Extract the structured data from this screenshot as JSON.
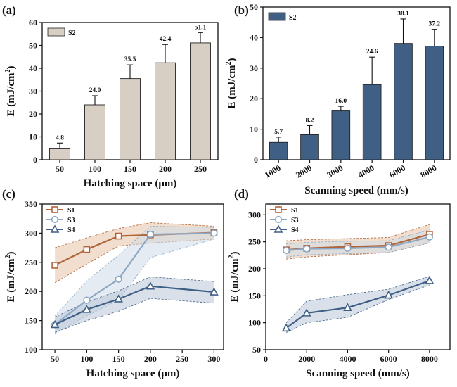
{
  "chart_data": [
    {
      "type": "bar",
      "panel_label": "(a)",
      "xlabel": "Hatching space (μm)",
      "ylabel": "E (mJ/cm²)",
      "categories": [
        "50",
        "100",
        "150",
        "200",
        "250"
      ],
      "series": [
        {
          "name": "S2",
          "values": [
            4.8,
            24.0,
            35.5,
            42.4,
            51.1
          ],
          "errors": [
            2.5,
            4.0,
            6.0,
            8.0,
            4.5
          ]
        }
      ],
      "data_labels": [
        "4.8",
        "24.0",
        "35.5",
        "42.4",
        "51.1"
      ],
      "ylim": [
        0,
        60
      ],
      "yticks": [
        "0",
        "10",
        "20",
        "30",
        "40",
        "50",
        "60"
      ],
      "bar_color": "#d8cfc4",
      "legend": "top-left"
    },
    {
      "type": "bar",
      "panel_label": "(b)",
      "xlabel": "Scanning speed (mm/s)",
      "ylabel": "E (mJ/cm²)",
      "categories": [
        "1000",
        "2000",
        "3000",
        "4000",
        "6000",
        "8000"
      ],
      "series": [
        {
          "name": "S2",
          "values": [
            5.7,
            8.2,
            16.0,
            24.6,
            38.1,
            37.2
          ],
          "errors": [
            1.7,
            3.0,
            1.5,
            9.0,
            8.0,
            5.5
          ]
        }
      ],
      "data_labels": [
        "5.7",
        "8.2",
        "16.0",
        "24.6",
        "38.1",
        "37.2"
      ],
      "ylim": [
        0,
        50
      ],
      "yticks": [
        "0",
        "10",
        "20",
        "30",
        "40",
        "50"
      ],
      "bar_color": "#3f5f85",
      "legend": "top-left"
    },
    {
      "type": "line",
      "panel_label": "(c)",
      "xlabel": "Hatching space (μm)",
      "ylabel": "E (mJ/cm²)",
      "xlim": [
        30,
        315
      ],
      "ylim": [
        100,
        350
      ],
      "xticks": [
        "50",
        "100",
        "150",
        "200",
        "250",
        "300"
      ],
      "yticks": [
        "100",
        "150",
        "200",
        "250",
        "300",
        "350"
      ],
      "series": [
        {
          "name": "S1",
          "x": [
            50,
            100,
            150,
            200,
            300
          ],
          "y": [
            245,
            272,
            295,
            297,
            301
          ],
          "band_upper": [
            275,
            292,
            308,
            318,
            312
          ],
          "band_lower": [
            215,
            247,
            278,
            283,
            290
          ],
          "color": "#b0643a",
          "marker": "square"
        },
        {
          "name": "S3",
          "x": [
            50,
            100,
            150,
            200,
            300
          ],
          "y": [
            143,
            185,
            221,
            298,
            300
          ],
          "band_upper": [
            158,
            218,
            262,
            312,
            310
          ],
          "band_lower": [
            128,
            158,
            185,
            258,
            290
          ],
          "color": "#8ea8c3",
          "marker": "circle"
        },
        {
          "name": "S4",
          "x": [
            50,
            100,
            150,
            200,
            300
          ],
          "y": [
            143,
            169,
            187,
            209,
            199
          ],
          "band_upper": [
            156,
            182,
            201,
            225,
            217
          ],
          "band_lower": [
            130,
            150,
            166,
            188,
            180
          ],
          "color": "#3f5f85",
          "marker": "triangle"
        }
      ],
      "legend": "top-left"
    },
    {
      "type": "line",
      "panel_label": "(d)",
      "xlabel": "Scanning speed (mm/s)",
      "ylabel": "E (mJ/cm²)",
      "xlim": [
        0,
        9000
      ],
      "ylim": [
        50,
        320
      ],
      "xticks": [
        "0",
        "2000",
        "4000",
        "6000",
        "8000"
      ],
      "yticks": [
        "50",
        "100",
        "150",
        "200",
        "250",
        "300"
      ],
      "series": [
        {
          "name": "S1",
          "x": [
            1000,
            2000,
            4000,
            6000,
            8000
          ],
          "y": [
            235,
            238,
            241,
            243,
            264
          ],
          "band_upper": [
            252,
            254,
            256,
            258,
            282
          ],
          "band_lower": [
            218,
            222,
            226,
            230,
            248
          ],
          "color": "#b0643a",
          "marker": "square"
        },
        {
          "name": "S3",
          "x": [
            1000,
            2000,
            4000,
            6000,
            8000
          ],
          "y": [
            234,
            237,
            238,
            240,
            259
          ],
          "band_upper": [
            246,
            249,
            251,
            252,
            272
          ],
          "band_lower": [
            222,
            226,
            228,
            230,
            248
          ],
          "color": "#8ea8c3",
          "marker": "circle"
        },
        {
          "name": "S4",
          "x": [
            1000,
            2000,
            4000,
            6000,
            8000
          ],
          "y": [
            90,
            118,
            128,
            151,
            178
          ],
          "band_upper": [
            100,
            140,
            152,
            162,
            186
          ],
          "band_lower": [
            82,
            100,
            110,
            143,
            170
          ],
          "color": "#3f5f85",
          "marker": "triangle"
        }
      ],
      "legend": "top-left"
    }
  ]
}
